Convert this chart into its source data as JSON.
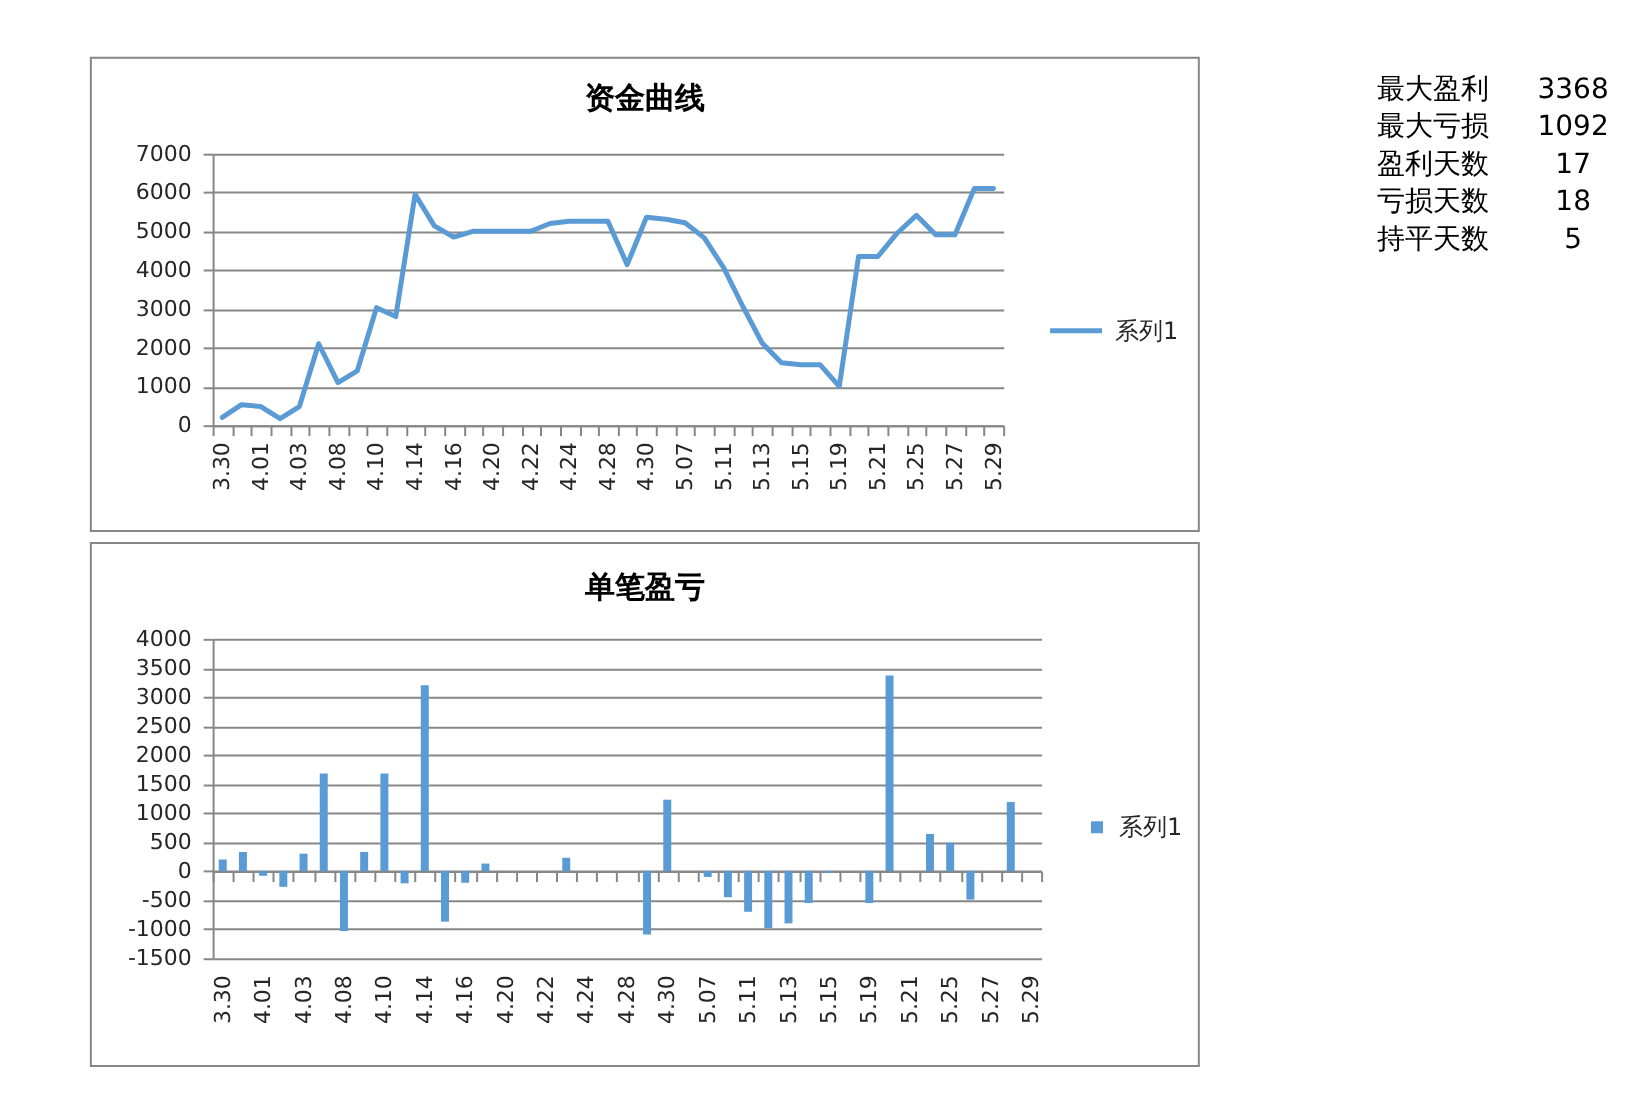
{
  "chart_data": [
    {
      "type": "line",
      "title": "资金曲线",
      "categories": [
        "3.30",
        null,
        "4.01",
        null,
        "4.03",
        null,
        "4.08",
        null,
        "4.10",
        null,
        "4.14",
        null,
        "4.16",
        null,
        "4.20",
        null,
        "4.22",
        null,
        "4.24",
        null,
        "4.28",
        null,
        "4.30",
        null,
        "5.07",
        null,
        "5.11",
        null,
        "5.13",
        null,
        "5.15",
        null,
        "5.19",
        null,
        "5.21",
        null,
        "5.25",
        null,
        "5.27",
        null,
        "5.29"
      ],
      "series": [
        {
          "name": "系列1",
          "color": "#5b9bd5",
          "values": [
            200,
            530,
            480,
            170,
            480,
            2100,
            1100,
            1400,
            3030,
            2800,
            5950,
            5140,
            4850,
            5000,
            5000,
            5000,
            5000,
            5200,
            5260,
            5260,
            5260,
            4140,
            5360,
            5310,
            5220,
            4830,
            4060,
            3060,
            2120,
            1610,
            1560,
            1560,
            1000,
            4350,
            4350,
            4950,
            5410,
            4910,
            4910,
            6100,
            6100
          ]
        }
      ],
      "ylim": [
        0,
        7000
      ],
      "yticks": [
        0,
        1000,
        2000,
        3000,
        4000,
        5000,
        6000,
        7000
      ],
      "grid": "y",
      "legend": "right"
    },
    {
      "type": "bar",
      "title": "单笔盈亏",
      "categories": [
        "3.30",
        null,
        "4.01",
        null,
        "4.03",
        null,
        "4.08",
        null,
        "4.10",
        null,
        "4.14",
        null,
        "4.16",
        null,
        "4.20",
        null,
        "4.22",
        null,
        "4.24",
        null,
        "4.28",
        null,
        "4.30",
        null,
        "5.07",
        null,
        "5.11",
        null,
        "5.13",
        null,
        "5.15",
        null,
        "5.19",
        null,
        "5.21",
        null,
        "5.25",
        null,
        "5.27",
        null,
        "5.29"
      ],
      "series": [
        {
          "name": "系列1",
          "color": "#5b9bd5",
          "values": [
            200,
            330,
            -80,
            -270,
            300,
            1680,
            -1030,
            330,
            1680,
            -210,
            3200,
            -870,
            -200,
            130,
            null,
            null,
            null,
            230,
            null,
            null,
            null,
            -1092,
            1230,
            null,
            -100,
            -450,
            -700,
            -980,
            -900,
            -550,
            -30,
            null,
            -550,
            3368,
            null,
            640,
            490,
            -490,
            null,
            1190,
            null
          ]
        }
      ],
      "ylim": [
        -1500,
        4000
      ],
      "yticks": [
        -1500,
        -1000,
        -500,
        0,
        500,
        1000,
        1500,
        2000,
        2500,
        3000,
        3500,
        4000
      ],
      "grid": "y",
      "legend": "right"
    },
    {
      "type": "other",
      "categories": [
        "最大盈利",
        "最大亏损",
        "盈利天数",
        "亏损天数",
        "持平天数"
      ],
      "values": [
        3368,
        1092,
        17,
        18,
        5
      ],
      "data_labels": true
    }
  ]
}
